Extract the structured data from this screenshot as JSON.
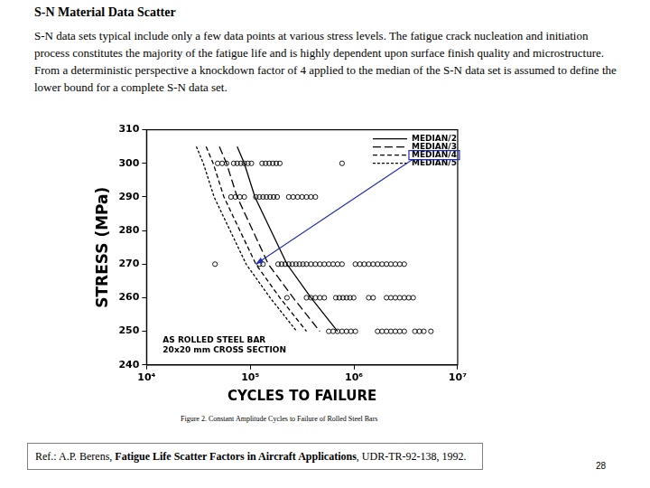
{
  "page": {
    "heading": "S-N Material Data Scatter",
    "paragraph": "S-N data sets typical include only a few data points at various stress levels.  The fatigue crack nucleation and initiation process constitutes the majority of the fatigue life and is highly dependent upon surface finish quality and microstructure.  From a deterministic perspective a knockdown factor of 4 applied to the median of the S-N data set is assumed to define the lower bound for a complete S-N data set.",
    "highlight": "MEDIAN/4",
    "reference": {
      "prefix": "Ref.:  A.P. Berens, ",
      "title": "Fatigue Life Scatter Factors in Aircraft Applications",
      "suffix": ", UDR-TR-92-138, 1992."
    },
    "page_number": "28"
  },
  "chart_data": {
    "type": "scatter",
    "x_label": "CYCLES TO FAILURE",
    "y_label": "STRESS (MPa)",
    "annotations": [
      "AS ROLLED STEEL BAR",
      "20x20 mm CROSS SECTION"
    ],
    "caption": "Figure 2. Constant Amplitude Cycles to Failure of Rolled Steel Bars",
    "log": "x",
    "grid": false,
    "legend": "upper right",
    "xlim": [
      10000,
      10000000
    ],
    "xticks": [
      {
        "value": 10000,
        "label": "10⁴"
      },
      {
        "value": 100000,
        "label": "10⁵"
      },
      {
        "value": 1000000,
        "label": "10⁶"
      },
      {
        "value": 10000000,
        "label": "10⁷"
      }
    ],
    "ylim": [
      240,
      310
    ],
    "yticks": [
      240,
      250,
      260,
      270,
      280,
      290,
      300,
      310
    ],
    "series": [
      {
        "type": "scatter",
        "marker": "open circle",
        "color": "#000000",
        "x": [
          48500,
          53500,
          59000,
          69200,
          74800,
          81000,
          87600,
          94800,
          102600,
          130000,
          140600,
          152300,
          164800,
          178200,
          192800,
          767700,
          65200,
          71900,
          79400,
          87600,
          113200,
          122500,
          132700,
          143500,
          155300,
          168000,
          181900,
          235000,
          259200,
          286400,
          316000,
          348500,
          384600,
          424600,
          45700,
          122500,
          132700,
          185400,
          200500,
          217200,
          235000,
          254200,
          275400,
          297800,
          322000,
          348500,
          384600,
          424600,
          468800,
          517600,
          571400,
          630000,
          695000,
          767700,
          1032000,
          1140000,
          1257000,
          1387000,
          1531000,
          1690000,
          1866000,
          2060000,
          2271000,
          2507000,
          2768000,
          3055000,
          225900,
          348500,
          384600,
          424600,
          468800,
          517600,
          668300,
          722800,
          783000,
          847000,
          916000,
          993000,
          1387000,
          1531000,
          2060000,
          2271000,
          2507000,
          2768000,
          3055000,
          3373000,
          3724000,
          571400,
          630000,
          695000,
          767700,
          847000,
          935000,
          1032000,
          1690000,
          1866000,
          2060000,
          2271000,
          2507000,
          2768000,
          3055000,
          3872000,
          4276000,
          4721000,
          5521000
        ],
        "values": [
          300,
          300,
          300,
          300,
          300,
          300,
          300,
          300,
          300,
          300,
          300,
          300,
          300,
          300,
          300,
          300,
          290,
          290,
          290,
          290,
          290,
          290,
          290,
          290,
          290,
          290,
          290,
          290,
          290,
          290,
          290,
          290,
          290,
          290,
          270,
          270,
          270,
          270,
          270,
          270,
          270,
          270,
          270,
          270,
          270,
          270,
          270,
          270,
          270,
          270,
          270,
          270,
          270,
          270,
          270,
          270,
          270,
          270,
          270,
          270,
          270,
          270,
          270,
          270,
          270,
          270,
          260,
          260,
          260,
          260,
          260,
          260,
          260,
          260,
          260,
          260,
          260,
          260,
          260,
          260,
          260,
          260,
          260,
          260,
          260,
          260,
          260,
          250,
          250,
          250,
          250,
          250,
          250,
          250,
          250,
          250,
          250,
          250,
          250,
          250,
          250,
          250,
          250,
          250,
          250
        ]
      },
      {
        "name": "MEDIAN/2",
        "type": "line",
        "line_style": "solid",
        "color": "#000000",
        "x": [
          74800,
          87600,
          110900,
          225900,
          384600,
          695000
        ],
        "values": [
          305,
          300,
          290,
          270,
          260,
          250
        ]
      },
      {
        "name": "MEDIAN/3",
        "type": "line",
        "line_style": "longdash",
        "color": "#000000",
        "x": [
          50400,
          59000,
          74800,
          149300,
          259200,
          468800
        ],
        "values": [
          305,
          300,
          290,
          270,
          260,
          250
        ]
      },
      {
        "name": "MEDIAN/4",
        "type": "line",
        "line_style": "dash",
        "color": "#000000",
        "x": [
          37500,
          43900,
          55700,
          113200,
          192800,
          348500
        ],
        "values": [
          305,
          300,
          290,
          270,
          260,
          250
        ]
      },
      {
        "name": "MEDIAN/5",
        "type": "line",
        "line_style": "shortdash",
        "color": "#000000",
        "x": [
          30200,
          35300,
          44800,
          91200,
          155300,
          280700
        ],
        "values": [
          305,
          300,
          290,
          270,
          260,
          250
        ]
      }
    ]
  }
}
